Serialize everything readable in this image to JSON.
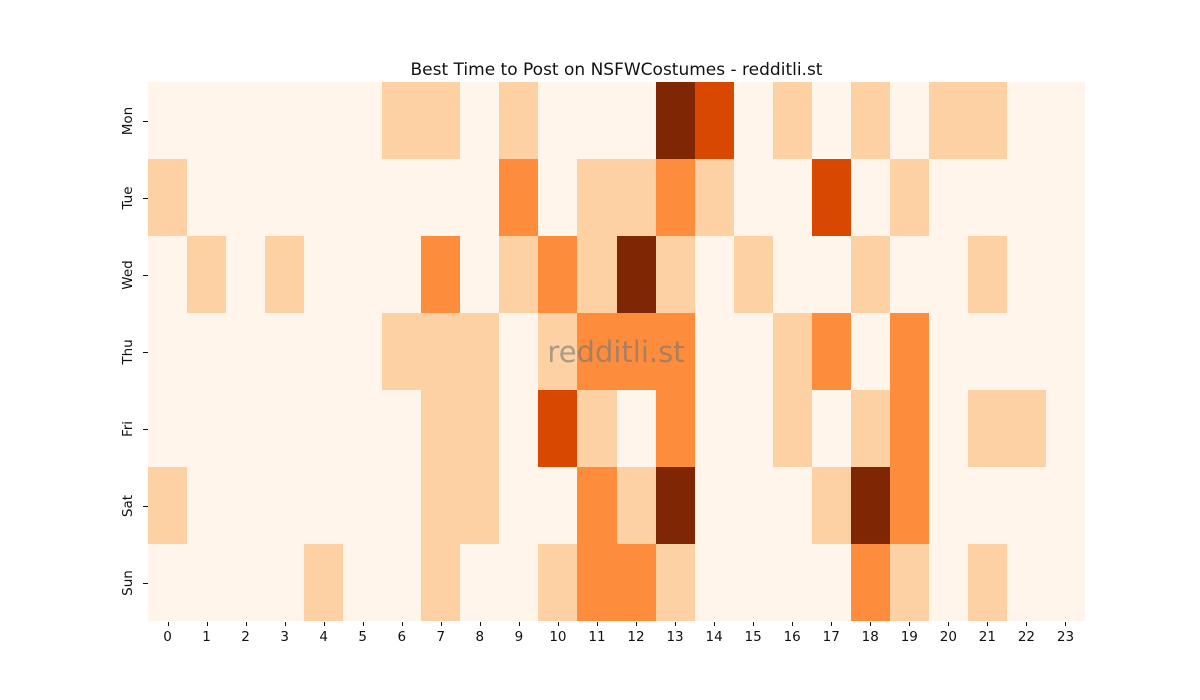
{
  "figure": {
    "title": "Best Time to Post on NSFWCostumes - redditli.st",
    "watermark": "redditli.st",
    "background_color": "#ffffff",
    "text_color": "#111111"
  },
  "chart_data": {
    "type": "heatmap",
    "title": "Best Time to Post on NSFWCostumes - redditli.st",
    "xlabel": "",
    "ylabel": "",
    "x_categories": [
      "0",
      "1",
      "2",
      "3",
      "4",
      "5",
      "6",
      "7",
      "8",
      "9",
      "10",
      "11",
      "12",
      "13",
      "14",
      "15",
      "16",
      "17",
      "18",
      "19",
      "20",
      "21",
      "22",
      "23"
    ],
    "y_categories": [
      "Mon",
      "Tue",
      "Wed",
      "Thu",
      "Fri",
      "Sat",
      "Sun"
    ],
    "values": [
      [
        0,
        0,
        0,
        0,
        0,
        0,
        1,
        1,
        0,
        1,
        0,
        0,
        0,
        4,
        3,
        0,
        1,
        0,
        1,
        0,
        1,
        1,
        0,
        0
      ],
      [
        1,
        0,
        0,
        0,
        0,
        0,
        0,
        0,
        0,
        2,
        0,
        1,
        1,
        2,
        1,
        0,
        0,
        3,
        0,
        1,
        0,
        0,
        0,
        0
      ],
      [
        0,
        1,
        0,
        1,
        0,
        0,
        0,
        2,
        0,
        1,
        2,
        1,
        4,
        1,
        0,
        1,
        0,
        0,
        1,
        0,
        0,
        1,
        0,
        0
      ],
      [
        0,
        0,
        0,
        0,
        0,
        0,
        1,
        1,
        1,
        0,
        1,
        2,
        2,
        2,
        0,
        0,
        1,
        2,
        0,
        2,
        0,
        0,
        0,
        0
      ],
      [
        0,
        0,
        0,
        0,
        0,
        0,
        0,
        1,
        1,
        0,
        3,
        1,
        0,
        2,
        0,
        0,
        1,
        0,
        1,
        2,
        0,
        1,
        1,
        0
      ],
      [
        1,
        0,
        0,
        0,
        0,
        0,
        0,
        1,
        1,
        0,
        0,
        2,
        1,
        4,
        0,
        0,
        0,
        1,
        4,
        2,
        0,
        0,
        0,
        0
      ],
      [
        0,
        0,
        0,
        0,
        1,
        0,
        0,
        1,
        0,
        0,
        1,
        2,
        2,
        1,
        0,
        0,
        0,
        0,
        2,
        1,
        0,
        1,
        0,
        0
      ]
    ],
    "value_range": [
      0,
      4
    ],
    "colormap_name": "Oranges",
    "palette": [
      "#FFF5EB",
      "#FDD1A3",
      "#FD8D3C",
      "#D94801",
      "#7F2704"
    ],
    "grid": false,
    "legend": "none",
    "annotations": [
      "redditli.st"
    ]
  }
}
